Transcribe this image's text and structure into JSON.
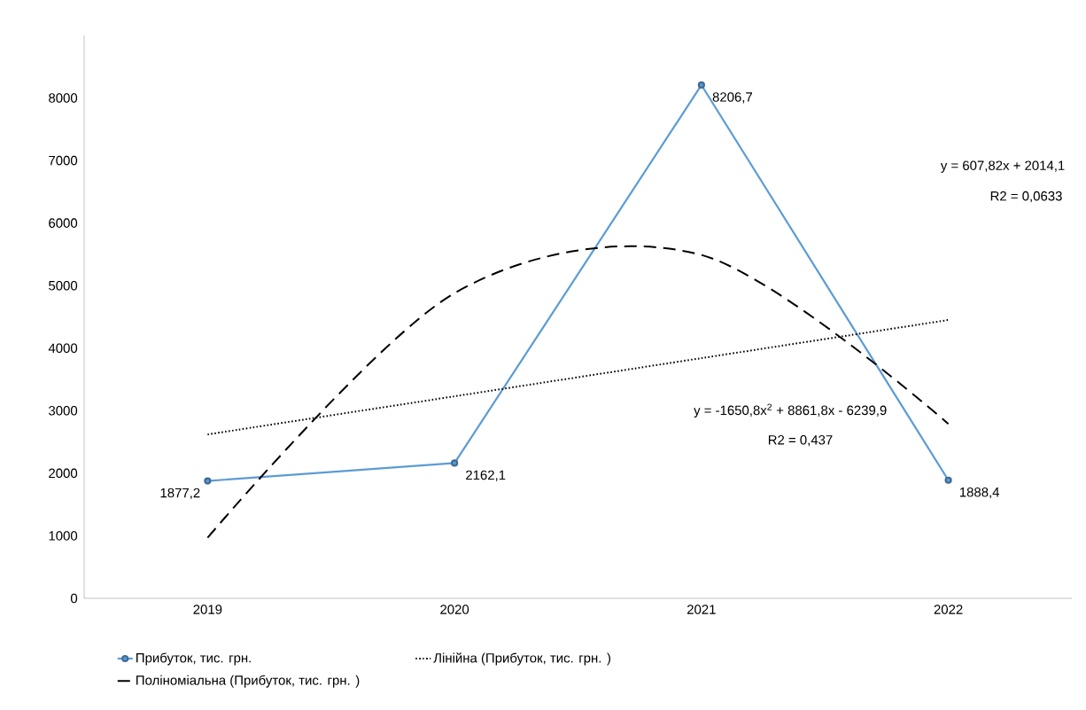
{
  "chart_data": {
    "type": "line",
    "categories": [
      "2019",
      "2020",
      "2021",
      "2022"
    ],
    "series": [
      {
        "name": "Прибуток, тис. грн.",
        "color": "#5b9bd5",
        "values": [
          1877.2,
          2162.1,
          8206.7,
          1888.4
        ],
        "marker": "circle",
        "line_style": "solid",
        "value_labels": [
          "1877,2",
          "2162,1",
          "8206,7",
          "1888,4"
        ]
      },
      {
        "name": "Лінійна (Прибуток, тис. грн. )",
        "color": "#000000",
        "values": [
          2620,
          3230,
          3840,
          4450
        ],
        "marker": "none",
        "line_style": "dotted"
      },
      {
        "name": "Поліноміальна (Прибуток, тис. грн. )",
        "color": "#000000",
        "values": [
          970,
          4880,
          5490,
          2790
        ],
        "marker": "none",
        "line_style": "dashed"
      }
    ],
    "ylim": [
      0,
      9000
    ],
    "yticks": [
      0,
      1000,
      2000,
      3000,
      4000,
      5000,
      6000,
      7000,
      8000
    ],
    "annotations": [
      "y = 607,82x + 2014,1",
      "R2 = 0,0633",
      "y =  -1650,8x$^{2}$ + 8861,8x  - 6239,9",
      "R2 = 0,437"
    ],
    "legend": "bottom"
  }
}
